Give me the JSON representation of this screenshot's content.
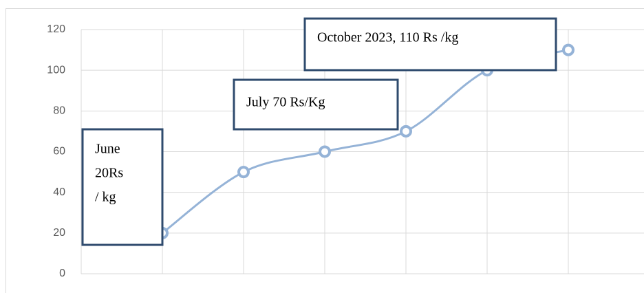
{
  "chart_data": {
    "type": "line",
    "categories": [
      null,
      null,
      null,
      null,
      null,
      null
    ],
    "series": [
      {
        "color": "#95b3d7",
        "values": [
          20,
          50,
          60,
          70,
          100,
          110
        ]
      }
    ],
    "ylim": [
      0,
      120
    ],
    "yticks": [
      0,
      20,
      40,
      60,
      80,
      100,
      120
    ],
    "grid": true,
    "annotations": [
      [
        "June",
        "20Rs",
        "/ kg"
      ],
      [
        "July 70 Rs/Kg"
      ],
      [
        "October 2023, 110 Rs /kg"
      ]
    ]
  }
}
